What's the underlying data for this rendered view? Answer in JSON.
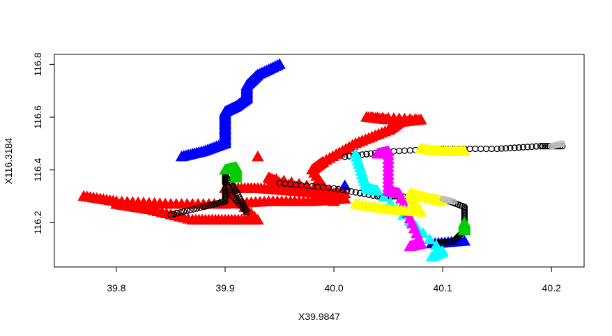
{
  "chart_data": {
    "type": "scatter",
    "title": "",
    "xlabel": "X39.9847",
    "ylabel": "X116.3184",
    "xlim": [
      39.743,
      40.23
    ],
    "ylim": [
      116.032,
      116.838
    ],
    "xticks": [
      "39.8",
      "39.9",
      "40.0",
      "40.1",
      "40.2"
    ],
    "xtick_values": [
      39.8,
      39.9,
      40.0,
      40.1,
      40.2
    ],
    "yticks": [
      "116.2",
      "116.4",
      "116.6",
      "116.8"
    ],
    "ytick_values": [
      116.2,
      116.4,
      116.6,
      116.8
    ],
    "grid": false,
    "legend": "none",
    "series": [
      {
        "color": "#ff0000",
        "marker": "triangle",
        "points": [
          [
            39.77,
            116.3
          ],
          [
            39.8,
            116.28
          ],
          [
            39.85,
            116.27
          ],
          [
            39.9,
            116.27
          ],
          [
            39.94,
            116.28
          ],
          [
            39.98,
            116.28
          ],
          [
            40.01,
            116.29
          ],
          [
            39.8,
            116.27
          ],
          [
            39.83,
            116.25
          ],
          [
            39.87,
            116.21
          ],
          [
            39.9,
            116.21
          ],
          [
            39.93,
            116.21
          ],
          [
            39.9,
            116.33
          ],
          [
            39.93,
            116.33
          ],
          [
            39.96,
            116.32
          ],
          [
            39.99,
            116.31
          ],
          [
            40.01,
            116.31
          ],
          [
            39.94,
            116.37
          ],
          [
            39.95,
            116.35
          ],
          [
            39.97,
            116.33
          ],
          [
            39.99,
            116.3
          ],
          [
            40.0,
            116.28
          ],
          [
            39.98,
            116.4
          ],
          [
            39.99,
            116.43
          ],
          [
            40.02,
            116.5
          ],
          [
            40.05,
            116.55
          ],
          [
            40.06,
            116.58
          ],
          [
            40.08,
            116.59
          ],
          [
            40.03,
            116.6
          ],
          [
            40.05,
            116.59
          ],
          [
            39.93,
            116.45
          ]
        ]
      },
      {
        "color": "#0000ff",
        "marker": "triangle",
        "points": [
          [
            39.95,
            116.8
          ],
          [
            39.93,
            116.76
          ],
          [
            39.92,
            116.72
          ],
          [
            39.92,
            116.67
          ],
          [
            39.91,
            116.64
          ],
          [
            39.9,
            116.62
          ],
          [
            39.9,
            116.56
          ],
          [
            39.9,
            116.5
          ],
          [
            39.88,
            116.47
          ],
          [
            39.86,
            116.45
          ],
          [
            40.01,
            116.34
          ],
          [
            40.12,
            116.13
          ],
          [
            40.09,
            116.12
          ]
        ]
      },
      {
        "color": "#000000",
        "marker": "circle",
        "points": [
          [
            40.01,
            116.45
          ],
          [
            40.05,
            116.47
          ],
          [
            40.1,
            116.48
          ],
          [
            40.15,
            116.48
          ],
          [
            40.19,
            116.49
          ],
          [
            40.21,
            116.49
          ],
          [
            39.95,
            116.35
          ],
          [
            40.0,
            116.33
          ],
          [
            40.04,
            116.3
          ],
          [
            40.06,
            116.3
          ],
          [
            40.1,
            116.29
          ],
          [
            40.12,
            116.26
          ],
          [
            40.12,
            116.21
          ],
          [
            40.12,
            116.17
          ],
          [
            40.11,
            116.13
          ],
          [
            40.09,
            116.12
          ],
          [
            39.85,
            116.23
          ],
          [
            39.88,
            116.26
          ],
          [
            39.9,
            116.28
          ],
          [
            39.9,
            116.33
          ],
          [
            39.92,
            116.24
          ],
          [
            39.91,
            116.32
          ],
          [
            39.9,
            116.38
          ],
          [
            39.9,
            116.35
          ]
        ]
      },
      {
        "color": "#00cc00",
        "marker": "triangle",
        "points": [
          [
            39.9,
            116.4
          ],
          [
            39.91,
            116.41
          ],
          [
            39.91,
            116.37
          ],
          [
            40.12,
            116.2
          ],
          [
            40.12,
            116.17
          ]
        ]
      },
      {
        "color": "#00ffff",
        "marker": "triangle",
        "points": [
          [
            40.02,
            116.46
          ],
          [
            40.03,
            116.33
          ],
          [
            40.04,
            116.32
          ],
          [
            40.1,
            116.09
          ],
          [
            40.09,
            116.07
          ]
        ]
      },
      {
        "color": "#ff00ff",
        "marker": "triangle",
        "points": [
          [
            40.04,
            116.46
          ],
          [
            40.05,
            116.47
          ],
          [
            40.05,
            116.32
          ],
          [
            40.06,
            116.31
          ],
          [
            40.08,
            116.12
          ],
          [
            40.07,
            116.11
          ]
        ]
      },
      {
        "color": "#ffff00",
        "marker": "triangle",
        "points": [
          [
            40.08,
            116.48
          ],
          [
            40.1,
            116.47
          ],
          [
            40.12,
            116.47
          ],
          [
            40.02,
            116.27
          ],
          [
            40.05,
            116.25
          ],
          [
            40.08,
            116.24
          ],
          [
            40.07,
            116.31
          ],
          [
            40.09,
            116.29
          ],
          [
            40.1,
            116.28
          ]
        ]
      },
      {
        "color": "#bebebe",
        "marker": "circle",
        "points": [
          [
            40.1,
            116.29
          ],
          [
            40.11,
            116.28
          ],
          [
            40.2,
            116.49
          ],
          [
            40.21,
            116.5
          ]
        ]
      }
    ]
  }
}
